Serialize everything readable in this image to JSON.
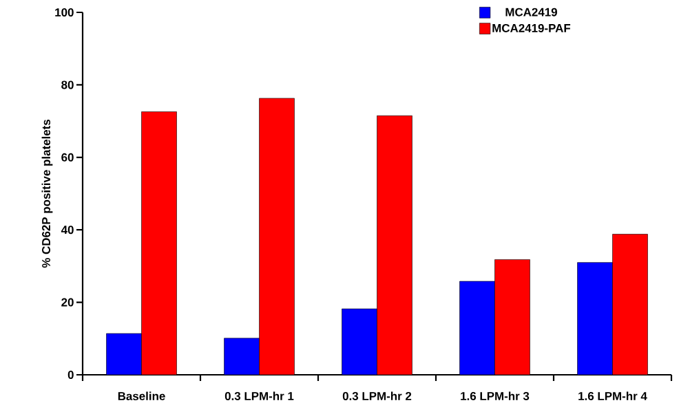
{
  "chart_data": {
    "type": "bar",
    "ylabel": "% CD62P positive platelets",
    "categories": [
      "Baseline",
      "0.3 LPM-hr 1",
      "0.3 LPM-hr 2",
      "1.6 LPM-hr 3",
      "1.6 LPM-hr 4"
    ],
    "series": [
      {
        "name": "MCA2419",
        "color": "#0000ff",
        "values": [
          11.4,
          10.1,
          18.2,
          25.8,
          31.0
        ]
      },
      {
        "name": "MCA2419-PAF",
        "color": "#ff0000",
        "values": [
          72.6,
          76.3,
          71.5,
          31.8,
          38.8
        ]
      }
    ],
    "ylim": [
      0,
      100
    ],
    "yticks": [
      0,
      20,
      40,
      60,
      80,
      100
    ],
    "grid": false,
    "legend": "top right"
  }
}
